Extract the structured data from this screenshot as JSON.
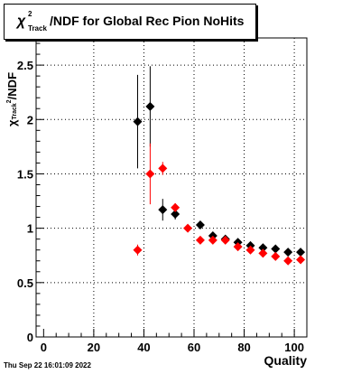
{
  "title": {
    "chi_symbol": "χ",
    "chi_sup": "2",
    "chi_sub": "Track",
    "text": "/NDF for Global Rec Pion NoHits"
  },
  "footer": "Thu Sep 22 16:01:09 2022",
  "chart_data": {
    "type": "scatter",
    "xlabel": "Quality",
    "ylabel": {
      "symbol": "χ",
      "sup": "2",
      "sub": "Track",
      "text": "/NDF"
    },
    "xlim": [
      -3,
      105
    ],
    "ylim": [
      0,
      2.75
    ],
    "x_ticks": [
      "0",
      "20",
      "40",
      "60",
      "80",
      "100"
    ],
    "y_ticks": [
      "0",
      "0.5",
      "1",
      "1.5",
      "2",
      "2.5"
    ],
    "grid": true,
    "series": [
      {
        "color": "#000000",
        "marker": "diamond",
        "points": [
          {
            "x": 37.5,
            "y": 1.98,
            "err": 0.43
          },
          {
            "x": 42.5,
            "y": 2.12,
            "err": 0.37
          },
          {
            "x": 47.5,
            "y": 1.17,
            "err": 0.1
          },
          {
            "x": 52.5,
            "y": 1.13,
            "err": 0.05
          },
          {
            "x": 62.5,
            "y": 1.03,
            "err": 0.02
          },
          {
            "x": 67.5,
            "y": 0.93,
            "err": 0.02
          },
          {
            "x": 72.5,
            "y": 0.9,
            "err": 0.02
          },
          {
            "x": 77.5,
            "y": 0.87,
            "err": 0.02
          },
          {
            "x": 82.5,
            "y": 0.84,
            "err": 0.02
          },
          {
            "x": 87.5,
            "y": 0.82,
            "err": 0.02
          },
          {
            "x": 92.5,
            "y": 0.81,
            "err": 0.02
          },
          {
            "x": 97.5,
            "y": 0.78,
            "err": 0.02
          },
          {
            "x": 102.5,
            "y": 0.78,
            "err": 0.02
          }
        ]
      },
      {
        "color": "#ff0000",
        "marker": "diamond",
        "points": [
          {
            "x": 37.5,
            "y": 0.8,
            "err": 0.05
          },
          {
            "x": 42.5,
            "y": 1.5,
            "err": 0.28
          },
          {
            "x": 47.5,
            "y": 1.55,
            "err": 0.06
          },
          {
            "x": 52.5,
            "y": 1.19,
            "err": 0.04
          },
          {
            "x": 57.5,
            "y": 1.0,
            "err": 0.02
          },
          {
            "x": 62.5,
            "y": 0.89,
            "err": 0.02
          },
          {
            "x": 67.5,
            "y": 0.89,
            "err": 0.02
          },
          {
            "x": 72.5,
            "y": 0.89,
            "err": 0.02
          },
          {
            "x": 77.5,
            "y": 0.83,
            "err": 0.02
          },
          {
            "x": 82.5,
            "y": 0.8,
            "err": 0.02
          },
          {
            "x": 87.5,
            "y": 0.77,
            "err": 0.02
          },
          {
            "x": 92.5,
            "y": 0.74,
            "err": 0.02
          },
          {
            "x": 97.5,
            "y": 0.7,
            "err": 0.02
          },
          {
            "x": 102.5,
            "y": 0.71,
            "err": 0.02
          }
        ]
      }
    ]
  }
}
